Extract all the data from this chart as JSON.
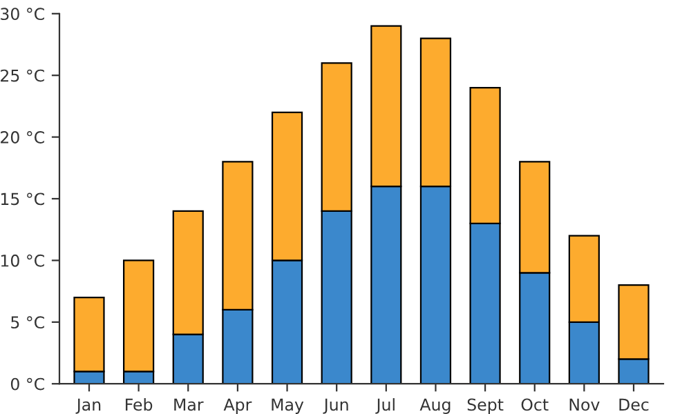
{
  "chart_data": {
    "type": "bar",
    "stacked": true,
    "categories": [
      "Jan",
      "Feb",
      "Mar",
      "Apr",
      "May",
      "Jun",
      "Jul",
      "Aug",
      "Sept",
      "Oct",
      "Nov",
      "Dec"
    ],
    "series": [
      {
        "color": "#3b88cc",
        "values": [
          1,
          1,
          4,
          6,
          10,
          14,
          16,
          16,
          13,
          9,
          5,
          2
        ]
      },
      {
        "color": "#fdab2e",
        "values": [
          6,
          9,
          10,
          12,
          12,
          12,
          13,
          12,
          11,
          9,
          7,
          6
        ]
      }
    ],
    "ylim": [
      0,
      30
    ],
    "yticks": [
      {
        "value": 0,
        "label": "0 °C"
      },
      {
        "value": 5,
        "label": "5 °C"
      },
      {
        "value": 10,
        "label": "10 °C"
      },
      {
        "value": 15,
        "label": "15 °C"
      },
      {
        "value": 20,
        "label": "20 °C"
      },
      {
        "value": 25,
        "label": "25 °C"
      },
      {
        "value": 30,
        "label": "30 °C"
      }
    ],
    "grid": false,
    "legend": false
  }
}
